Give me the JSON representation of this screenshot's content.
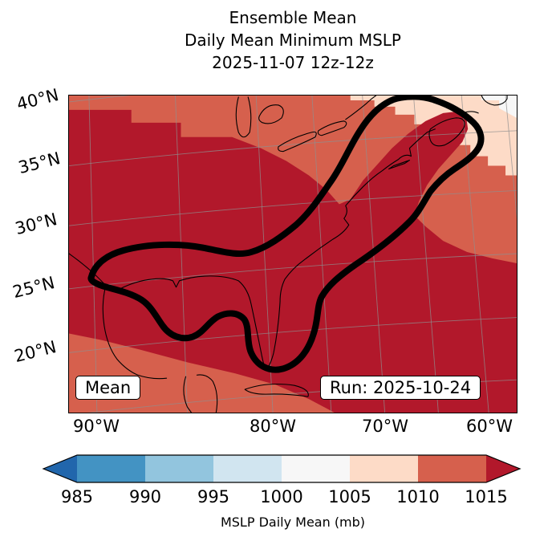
{
  "title": {
    "line1": "Ensemble Mean",
    "line2": "Daily Mean Minimum MSLP",
    "line3": "2025-11-07 12z-12z"
  },
  "map": {
    "stat_box": "Mean",
    "run_box": "Run: 2025-10-24",
    "lat_labels": [
      "40°N",
      "35°N",
      "30°N",
      "25°N",
      "20°N"
    ],
    "lon_labels": [
      "90°W",
      "80°W",
      "70°W",
      "60°W"
    ]
  },
  "colors": {
    "fill_dominant": "#d6604d",
    "fill_high": "#b2182b",
    "fill_low": "#fddbc7",
    "fill_lowest": "#f7f7f7",
    "grid": "#8f8f8f",
    "coast": "#000000",
    "contour": "#000000"
  },
  "chart_data": {
    "type": "heatmap",
    "subtype": "filled-contour-map",
    "title": "Ensemble Mean",
    "subtitle": "Daily Mean Minimum MSLP",
    "valid_period": "2025-11-07 12z-12z",
    "run_label": "Run: 2025-10-24",
    "statistic_label": "Mean",
    "region": "Gulf of Mexico and western North Atlantic (approx. 95W-55W, 18N-42N)",
    "axes": {
      "lat_ticks": [
        "40°N",
        "35°N",
        "30°N",
        "25°N",
        "20°N"
      ],
      "lon_ticks": [
        "90°W",
        "80°W",
        "70°W",
        "60°W"
      ],
      "grid": true
    },
    "colorbar": {
      "label": "MSLP Daily Mean (mb)",
      "ticks": [
        985,
        990,
        995,
        1000,
        1005,
        1010,
        1015
      ],
      "orientation": "horizontal",
      "extend": "both",
      "under_color": "#2166ac",
      "segment_colors": [
        "#4393c3",
        "#92c5de",
        "#d1e5f0",
        "#f7f7f7",
        "#fddbc7",
        "#d6604d"
      ],
      "over_color": "#b2182b"
    },
    "fill_regions": [
      {
        "value_range": "1010-1015 mb",
        "color": "#d6604d",
        "coverage": "dominant background over most of the domain"
      },
      {
        "value_range": "> 1015 mb",
        "color": "#b2182b",
        "coverage": "large interior blob over the central/southern U.S., Gulf coast and subtropical western Atlantic, extending northeast along the coast"
      },
      {
        "value_range": "1005-1010 mb",
        "color": "#fddbc7",
        "coverage": "band across the northeastern corner of the map"
      },
      {
        "value_range": "1000-1005 mb",
        "color": "#f7f7f7",
        "coverage": "far northeast corner"
      }
    ],
    "highlight_contour": "single thick black closed contour wrapping the Gulf of Mexico coast and extending northeast along the U.S. East Coast to a rounded maximum near Nova Scotia, with two lobes dipping south near Florida and the western Gulf"
  }
}
